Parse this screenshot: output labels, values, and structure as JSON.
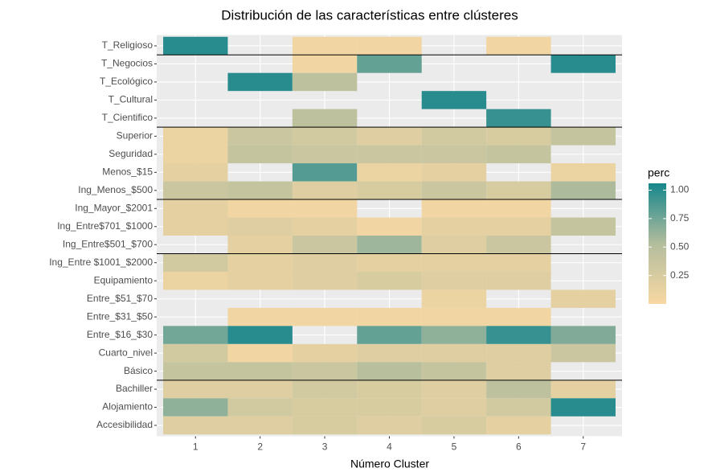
{
  "chart_data": {
    "type": "heatmap",
    "title": "Distribución de las características entre clústeres",
    "xlabel": "Número Cluster",
    "x": [
      1,
      2,
      3,
      4,
      5,
      6,
      7
    ],
    "y": [
      "T_Religioso",
      "T_Negocios",
      "T_Ecológico",
      "T_Cultural",
      "T_Cientifico",
      "Superior",
      "Seguridad",
      "Menos_$15",
      "Ing_Menos_$500",
      "Ing_Mayor_$2001",
      "Ing_Entre$701_$1000",
      "Ing_Entre$501_$700",
      "Ing_Entre $1001_$2000",
      "Equipamiento",
      "Entre_$51_$70",
      "Entre_$31_$50",
      "Entre_$16_$30",
      "Cuarto_nivel",
      "Básico",
      "Bachiller",
      "Alojamiento",
      "Accesibilidad"
    ],
    "z": [
      [
        1.0,
        null,
        0.05,
        0.05,
        null,
        0.05,
        null
      ],
      [
        null,
        null,
        0.05,
        0.8,
        null,
        null,
        1.0
      ],
      [
        null,
        1.0,
        0.45,
        null,
        null,
        null,
        null
      ],
      [
        null,
        null,
        null,
        null,
        1.0,
        null,
        null
      ],
      [
        null,
        null,
        0.45,
        null,
        null,
        0.95,
        null
      ],
      [
        0.1,
        0.35,
        0.3,
        0.2,
        0.3,
        0.25,
        0.4
      ],
      [
        0.1,
        0.4,
        0.35,
        0.35,
        0.35,
        0.4,
        null
      ],
      [
        0.15,
        null,
        0.85,
        0.1,
        0.15,
        null,
        0.1
      ],
      [
        0.35,
        0.4,
        0.2,
        0.25,
        0.35,
        0.25,
        0.55
      ],
      [
        0.15,
        0.05,
        0.05,
        null,
        0.05,
        0.05,
        null
      ],
      [
        0.15,
        0.2,
        0.15,
        0.05,
        0.15,
        0.15,
        0.4
      ],
      [
        null,
        0.15,
        0.35,
        0.6,
        0.2,
        0.35,
        null
      ],
      [
        0.3,
        0.15,
        0.2,
        0.15,
        0.15,
        0.15,
        null
      ],
      [
        0.1,
        0.15,
        0.2,
        0.25,
        0.2,
        0.2,
        null
      ],
      [
        null,
        null,
        null,
        null,
        0.1,
        null,
        0.15
      ],
      [
        null,
        0.05,
        0.05,
        0.05,
        0.05,
        0.05,
        null
      ],
      [
        0.75,
        1.0,
        null,
        0.8,
        0.65,
        0.95,
        0.7
      ],
      [
        0.3,
        0.05,
        0.15,
        0.2,
        0.2,
        0.2,
        0.35
      ],
      [
        0.4,
        0.4,
        0.35,
        0.5,
        0.4,
        0.2,
        null
      ],
      [
        0.2,
        0.2,
        0.3,
        0.25,
        0.2,
        0.45,
        0.15
      ],
      [
        0.65,
        0.3,
        0.25,
        0.25,
        0.2,
        0.3,
        1.0
      ],
      [
        0.2,
        0.2,
        0.25,
        0.2,
        0.25,
        0.15,
        null
      ]
    ],
    "group_breaks": [
      0,
      4,
      8,
      11,
      18
    ],
    "legend_title": "perc",
    "clim": [
      0,
      1.06
    ],
    "cticks": [
      0.25,
      {
        "value": 0.5,
        "label": "0.50"
      },
      0.75,
      {
        "value": 1,
        "label": "1.00"
      }
    ],
    "colorscale": [
      "#f8d8a3",
      "#b3bd9d",
      "#16868c"
    ]
  }
}
